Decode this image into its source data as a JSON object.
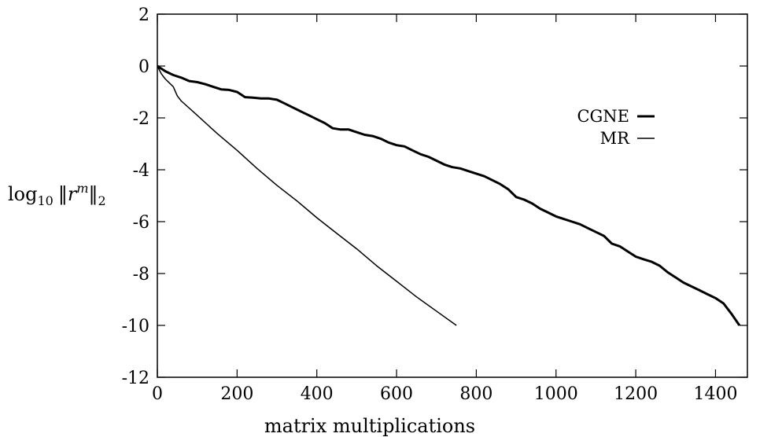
{
  "chart_data": {
    "type": "line",
    "xlabel": "matrix multiplications",
    "ylabel": {
      "prefix": "log",
      "sub": "10",
      "norm_open": "‖",
      "var": "r",
      "sup": "m",
      "norm_close": "‖",
      "norm_sub": "2"
    },
    "xlim": [
      0,
      1480
    ],
    "ylim": [
      -12,
      2
    ],
    "xticks": [
      0,
      200,
      400,
      600,
      800,
      1000,
      1200,
      1400
    ],
    "yticks": [
      2,
      0,
      -2,
      -4,
      -6,
      -8,
      -10,
      -12
    ],
    "ytick_labels": [
      "2",
      "0",
      "-2",
      "-4",
      "-6",
      "-8",
      "-10",
      "-12"
    ],
    "grid": false,
    "legend_position": "right",
    "series": [
      {
        "name": "CGNE",
        "color": "#000000",
        "weight": "thick",
        "x": [
          0,
          20,
          40,
          60,
          80,
          100,
          120,
          140,
          160,
          180,
          200,
          220,
          240,
          260,
          280,
          300,
          320,
          340,
          360,
          380,
          400,
          420,
          440,
          460,
          480,
          500,
          520,
          540,
          560,
          580,
          600,
          620,
          640,
          660,
          680,
          700,
          720,
          740,
          760,
          780,
          800,
          820,
          840,
          860,
          880,
          900,
          920,
          940,
          960,
          980,
          1000,
          1020,
          1040,
          1060,
          1080,
          1100,
          1120,
          1140,
          1160,
          1180,
          1200,
          1220,
          1240,
          1260,
          1280,
          1300,
          1320,
          1340,
          1360,
          1380,
          1400,
          1420,
          1440,
          1460
        ],
        "y": [
          0,
          -0.2,
          -0.35,
          -0.45,
          -0.58,
          -0.62,
          -0.7,
          -0.8,
          -0.9,
          -0.92,
          -1.0,
          -1.2,
          -1.22,
          -1.25,
          -1.25,
          -1.3,
          -1.45,
          -1.6,
          -1.75,
          -1.9,
          -2.05,
          -2.2,
          -2.4,
          -2.45,
          -2.45,
          -2.55,
          -2.65,
          -2.7,
          -2.8,
          -2.95,
          -3.05,
          -3.1,
          -3.25,
          -3.4,
          -3.5,
          -3.65,
          -3.8,
          -3.9,
          -3.95,
          -4.05,
          -4.15,
          -4.25,
          -4.4,
          -4.55,
          -4.75,
          -5.05,
          -5.15,
          -5.3,
          -5.5,
          -5.65,
          -5.8,
          -5.9,
          -6.0,
          -6.1,
          -6.25,
          -6.4,
          -6.55,
          -6.85,
          -6.95,
          -7.15,
          -7.35,
          -7.45,
          -7.55,
          -7.7,
          -7.95,
          -8.15,
          -8.35,
          -8.5,
          -8.65,
          -8.8,
          -8.95,
          -9.15,
          -9.55,
          -10.0
        ]
      },
      {
        "name": "MR",
        "color": "#000000",
        "weight": "thin",
        "x": [
          0,
          10,
          20,
          30,
          40,
          50,
          60,
          100,
          150,
          200,
          250,
          300,
          350,
          400,
          450,
          500,
          550,
          600,
          650,
          700,
          750
        ],
        "y": [
          0,
          -0.3,
          -0.5,
          -0.65,
          -0.8,
          -1.15,
          -1.35,
          -1.9,
          -2.6,
          -3.25,
          -3.95,
          -4.6,
          -5.2,
          -5.85,
          -6.45,
          -7.05,
          -7.7,
          -8.3,
          -8.9,
          -9.45,
          -10.0
        ]
      }
    ]
  }
}
